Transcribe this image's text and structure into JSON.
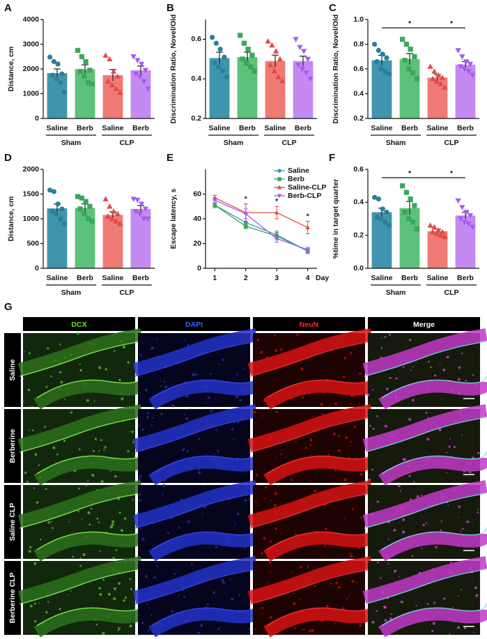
{
  "chart_data": [
    {
      "type": "bar",
      "panel": "A",
      "ylabel": "Distance, cm",
      "categories": [
        "Saline",
        "Berb",
        "Saline",
        "Berb"
      ],
      "group_labels": [
        "Sham",
        "CLP"
      ],
      "values": [
        1830,
        1990,
        1750,
        1950
      ],
      "errors": [
        170,
        180,
        230,
        170
      ],
      "points": [
        [
          2480,
          2300,
          2200,
          1800,
          1750,
          1600,
          1450,
          1050
        ],
        [
          2750,
          2500,
          2300,
          1950,
          1900,
          1700,
          1450,
          1400
        ],
        [
          2550,
          2400,
          1900,
          1700,
          1500,
          1350,
          1200,
          1050
        ],
        [
          2500,
          2350,
          2200,
          1950,
          1800,
          1700,
          1500,
          1200
        ]
      ],
      "colors": [
        "#3f95ad",
        "#5cc27a",
        "#ef7b74",
        "#c48af2"
      ],
      "point_colors": [
        "#2b7f99",
        "#3aa85a",
        "#e04a4a",
        "#a45cf0"
      ],
      "markers": [
        "circle",
        "square",
        "triangle",
        "triangle-down"
      ],
      "ylim": [
        0,
        4000
      ],
      "yticks": [
        0,
        1000,
        2000,
        3000,
        4000
      ]
    },
    {
      "type": "bar",
      "panel": "B",
      "ylabel": "Discrimination Ratio, Novel/Old",
      "categories": [
        "Saline",
        "Berb",
        "Saline",
        "Berb"
      ],
      "group_labels": [
        "Sham",
        "CLP"
      ],
      "values": [
        0.505,
        0.51,
        0.49,
        0.49
      ],
      "errors": [
        0.03,
        0.025,
        0.03,
        0.025
      ],
      "points": [
        [
          0.61,
          0.58,
          0.55,
          0.51,
          0.48,
          0.46,
          0.44,
          0.41
        ],
        [
          0.62,
          0.58,
          0.55,
          0.52,
          0.5,
          0.48,
          0.46,
          0.44
        ],
        [
          0.59,
          0.57,
          0.54,
          0.5,
          0.47,
          0.44,
          0.41,
          0.39
        ],
        [
          0.6,
          0.56,
          0.54,
          0.5,
          0.47,
          0.45,
          0.43,
          0.4
        ]
      ],
      "colors": [
        "#3f95ad",
        "#5cc27a",
        "#ef7b74",
        "#c48af2"
      ],
      "point_colors": [
        "#2b7f99",
        "#3aa85a",
        "#e04a4a",
        "#a45cf0"
      ],
      "markers": [
        "circle",
        "square",
        "triangle",
        "triangle-down"
      ],
      "ylim": [
        0.2,
        0.7
      ],
      "yticks": [
        0.2,
        0.4,
        0.6
      ]
    },
    {
      "type": "bar",
      "panel": "C",
      "ylabel": "Discrimination Ratio, Novel/Old",
      "categories": [
        "Saline",
        "Berb",
        "Saline",
        "Berb"
      ],
      "group_labels": [
        "Sham",
        "CLP"
      ],
      "values": [
        0.67,
        0.68,
        0.53,
        0.635
      ],
      "errors": [
        0.04,
        0.045,
        0.025,
        0.025
      ],
      "points": [
        [
          0.8,
          0.75,
          0.72,
          0.69,
          0.66,
          0.6,
          0.58,
          0.56
        ],
        [
          0.84,
          0.8,
          0.76,
          0.7,
          0.67,
          0.6,
          0.57,
          0.52
        ],
        [
          0.62,
          0.58,
          0.55,
          0.53,
          0.52,
          0.5,
          0.48,
          0.45
        ],
        [
          0.75,
          0.7,
          0.66,
          0.64,
          0.62,
          0.6,
          0.58,
          0.55
        ]
      ],
      "colors": [
        "#3f95ad",
        "#5cc27a",
        "#ef7b74",
        "#c48af2"
      ],
      "point_colors": [
        "#2b7f99",
        "#3aa85a",
        "#e04a4a",
        "#a45cf0"
      ],
      "markers": [
        "circle",
        "square",
        "triangle",
        "triangle-down"
      ],
      "significance": [
        {
          "label": "*",
          "pair": [
            0,
            2
          ]
        },
        {
          "label": "*",
          "pair": [
            2,
            3
          ]
        }
      ],
      "ylim": [
        0.2,
        1.0
      ],
      "yticks": [
        0.2,
        0.4,
        0.6,
        0.8,
        {
          "value": 1.0,
          "label": "1.0"
        }
      ]
    },
    {
      "type": "bar",
      "panel": "D",
      "ylabel": "Distance, cm",
      "categories": [
        "Saline",
        "Berb",
        "Saline",
        "Berb"
      ],
      "group_labels": [
        "Sham",
        "CLP"
      ],
      "values": [
        1210,
        1220,
        1080,
        1200
      ],
      "errors": [
        90,
        80,
        60,
        70
      ],
      "points": [
        [
          1580,
          1550,
          1300,
          1200,
          1150,
          1100,
          1000,
          900
        ],
        [
          1450,
          1420,
          1350,
          1250,
          1200,
          1100,
          1000,
          950
        ],
        [
          1400,
          1250,
          1150,
          1100,
          1050,
          1000,
          950,
          900
        ],
        [
          1400,
          1380,
          1300,
          1200,
          1150,
          1100,
          1000,
          1000
        ]
      ],
      "colors": [
        "#3f95ad",
        "#5cc27a",
        "#ef7b74",
        "#c48af2"
      ],
      "point_colors": [
        "#2b7f99",
        "#3aa85a",
        "#e04a4a",
        "#a45cf0"
      ],
      "markers": [
        "circle",
        "square",
        "triangle",
        "triangle-down"
      ],
      "ylim": [
        0,
        2000
      ],
      "yticks": [
        0,
        500,
        1000,
        1500,
        2000
      ]
    },
    {
      "type": "line",
      "panel": "E",
      "ylabel": "Escape latency, s",
      "xlabel": "Day",
      "x": [
        1,
        2,
        3,
        4
      ],
      "xticks": [
        1,
        2,
        3,
        4
      ],
      "xlim": [
        0.7,
        4.3
      ],
      "series": [
        {
          "name": "Saline",
          "color": "#3f95ad",
          "marker": "circle",
          "values": [
            51,
            37,
            27,
            14
          ],
          "errors": [
            2,
            3,
            3,
            2
          ]
        },
        {
          "name": "Berb",
          "color": "#3aa85a",
          "marker": "square",
          "values": [
            51,
            34,
            26,
            14
          ],
          "errors": [
            2,
            2,
            3,
            2
          ]
        },
        {
          "name": "Saline-CLP",
          "color": "#e04a4a",
          "marker": "triangle",
          "values": [
            57,
            45,
            45,
            33
          ],
          "errors": [
            2,
            7,
            5,
            5
          ]
        },
        {
          "name": "Berb-CLP",
          "color": "#a45cf0",
          "marker": "triangle-down",
          "values": [
            55,
            44,
            24,
            15
          ],
          "errors": [
            2,
            4,
            3,
            2
          ]
        }
      ],
      "annotations": [
        {
          "label": "*",
          "x": 2
        },
        {
          "label": "*",
          "x": 3
        },
        {
          "label": "*",
          "x": 4
        }
      ],
      "legend": "upper right",
      "ylim": [
        0,
        80
      ],
      "yticks": [
        0,
        20,
        40,
        60
      ]
    },
    {
      "type": "bar",
      "panel": "F",
      "ylabel": "%time in target quarter",
      "categories": [
        "Saline",
        "Berb",
        "Saline",
        "Berb"
      ],
      "group_labels": [
        "Sham",
        "CLP"
      ],
      "values": [
        0.34,
        0.365,
        0.225,
        0.32
      ],
      "errors": [
        0.025,
        0.04,
        0.012,
        0.02
      ],
      "points": [
        [
          0.43,
          0.42,
          0.36,
          0.34,
          0.31,
          0.3,
          0.28,
          0.26
        ],
        [
          0.5,
          0.46,
          0.42,
          0.38,
          0.34,
          0.3,
          0.28,
          0.24
        ],
        [
          0.26,
          0.25,
          0.23,
          0.22,
          0.22,
          0.21,
          0.2,
          0.19
        ],
        [
          0.41,
          0.37,
          0.34,
          0.32,
          0.3,
          0.28,
          0.27,
          0.25
        ]
      ],
      "colors": [
        "#3f95ad",
        "#5cc27a",
        "#ef7b74",
        "#c48af2"
      ],
      "point_colors": [
        "#2b7f99",
        "#3aa85a",
        "#e04a4a",
        "#a45cf0"
      ],
      "markers": [
        "circle",
        "square",
        "triangle",
        "triangle-down"
      ],
      "significance": [
        {
          "label": "*",
          "pair": [
            0,
            2
          ]
        },
        {
          "label": "*",
          "pair": [
            2,
            3
          ]
        }
      ],
      "ylim": [
        0,
        0.6
      ],
      "yticks": [
        {
          "value": 0,
          "label": "0.0"
        },
        0.2,
        0.4,
        0.6
      ]
    }
  ],
  "image_panel": {
    "label": "G",
    "columns": [
      "DCX",
      "DAPI",
      "NeuN",
      "Merge"
    ],
    "rows": [
      "Saline",
      "Berberine",
      "Saline CLP",
      "Berberine CLP"
    ]
  }
}
